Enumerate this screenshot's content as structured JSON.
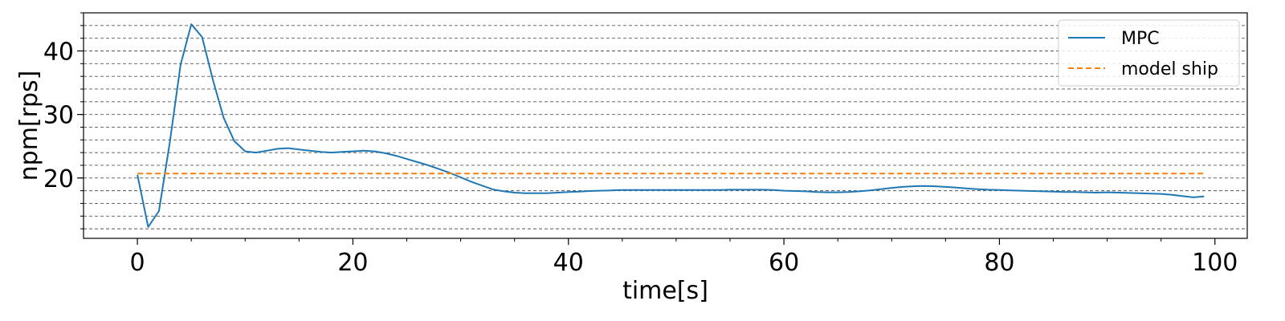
{
  "chart_data": {
    "type": "line",
    "xlabel": "time[s]",
    "ylabel": "npm[rps]",
    "xlim": [
      -5,
      103
    ],
    "ylim": [
      10.5,
      46
    ],
    "x_ticks": [
      0,
      20,
      40,
      60,
      80,
      100
    ],
    "y_ticks": [
      20,
      30,
      40
    ],
    "y_minor_step": 2,
    "grid": "y-minor-dashed",
    "legend": "top-right",
    "series": [
      {
        "name": "MPC",
        "color": "#1f77b4",
        "style": "solid",
        "x": [
          0,
          1,
          2,
          3,
          4,
          5,
          6,
          7,
          8,
          9,
          10,
          11,
          12,
          13,
          14,
          15,
          16,
          17,
          18,
          19,
          20,
          21,
          22,
          23,
          24,
          25,
          26,
          27,
          28,
          29,
          30,
          31,
          32,
          33,
          34,
          35,
          36,
          37,
          38,
          39,
          40,
          41,
          42,
          43,
          44,
          45,
          46,
          47,
          48,
          49,
          50,
          51,
          52,
          53,
          54,
          55,
          56,
          57,
          58,
          59,
          60,
          61,
          62,
          63,
          64,
          65,
          66,
          67,
          68,
          69,
          70,
          71,
          72,
          73,
          74,
          75,
          76,
          77,
          78,
          79,
          80,
          81,
          82,
          83,
          84,
          85,
          86,
          87,
          88,
          89,
          90,
          91,
          92,
          93,
          94,
          95,
          96,
          97,
          98,
          99
        ],
        "y": [
          20.5,
          12.3,
          14.8,
          25.5,
          37.8,
          44.2,
          42.2,
          35.5,
          29.5,
          25.8,
          24.2,
          24.0,
          24.3,
          24.6,
          24.7,
          24.5,
          24.3,
          24.1,
          24.0,
          24.1,
          24.2,
          24.3,
          24.2,
          23.9,
          23.5,
          23.0,
          22.5,
          22.0,
          21.4,
          20.8,
          20.1,
          19.4,
          18.8,
          18.2,
          17.9,
          17.7,
          17.6,
          17.6,
          17.6,
          17.7,
          17.8,
          17.85,
          17.95,
          18.0,
          18.05,
          18.1,
          18.1,
          18.1,
          18.1,
          18.1,
          18.1,
          18.1,
          18.1,
          18.1,
          18.1,
          18.15,
          18.15,
          18.15,
          18.15,
          18.1,
          18.0,
          17.95,
          17.9,
          17.8,
          17.75,
          17.75,
          17.8,
          17.9,
          18.05,
          18.25,
          18.45,
          18.6,
          18.7,
          18.75,
          18.7,
          18.6,
          18.5,
          18.35,
          18.25,
          18.15,
          18.1,
          18.05,
          18.0,
          17.95,
          17.9,
          17.85,
          17.8,
          17.8,
          17.75,
          17.7,
          17.75,
          17.7,
          17.65,
          17.6,
          17.55,
          17.5,
          17.35,
          17.15,
          16.95,
          17.1
        ]
      },
      {
        "name": "model ship",
        "color": "#ff7f0e",
        "style": "dashed",
        "x": [
          0,
          99
        ],
        "y": [
          20.7,
          20.7
        ]
      }
    ]
  }
}
